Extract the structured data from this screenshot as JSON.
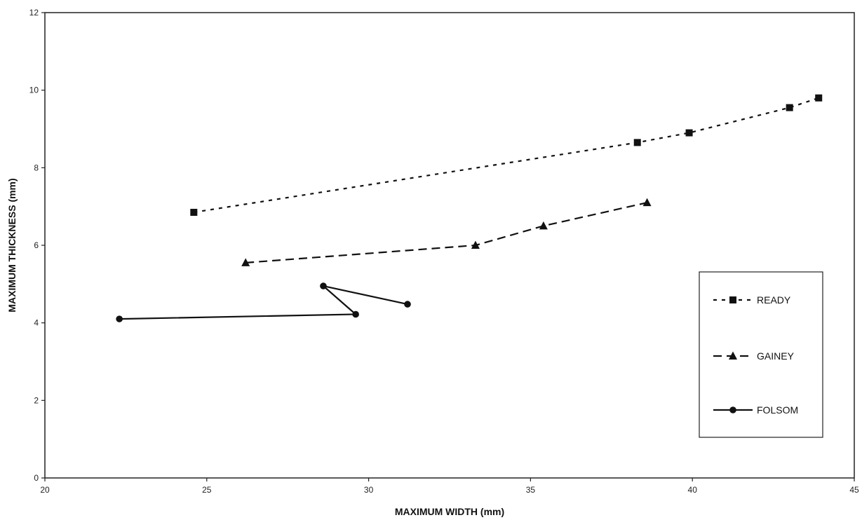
{
  "chart_data": {
    "type": "line",
    "title": "",
    "xlabel": "MAXIMUM WIDTH (mm)",
    "ylabel": "MAXIMUM THICKNESS (mm)",
    "xlim": [
      20,
      45
    ],
    "ylim": [
      0,
      12
    ],
    "x_ticks": [
      "20",
      "25",
      "30",
      "35",
      "40",
      "45"
    ],
    "y_ticks": [
      "0",
      "2",
      "4",
      "6",
      "8",
      "10",
      "12"
    ],
    "grid": false,
    "legend_position": "right",
    "series": [
      {
        "name": "READY",
        "marker": "square",
        "line": "dotted",
        "color": "#111111",
        "points": [
          {
            "x": 24.6,
            "y": 6.85
          },
          {
            "x": 38.3,
            "y": 8.65
          },
          {
            "x": 39.9,
            "y": 8.9
          },
          {
            "x": 43.0,
            "y": 9.55
          },
          {
            "x": 43.9,
            "y": 9.8
          }
        ]
      },
      {
        "name": "GAINEY",
        "marker": "triangle",
        "line": "dashed",
        "color": "#111111",
        "points": [
          {
            "x": 26.2,
            "y": 5.55
          },
          {
            "x": 33.3,
            "y": 6.0
          },
          {
            "x": 35.4,
            "y": 6.5
          },
          {
            "x": 38.6,
            "y": 7.1
          }
        ]
      },
      {
        "name": "FOLSOM",
        "marker": "circle",
        "line": "solid",
        "color": "#111111",
        "points": [
          {
            "x": 22.3,
            "y": 4.1
          },
          {
            "x": 29.6,
            "y": 4.22
          },
          {
            "x": 28.6,
            "y": 4.95
          },
          {
            "x": 31.2,
            "y": 4.48
          }
        ]
      }
    ]
  }
}
